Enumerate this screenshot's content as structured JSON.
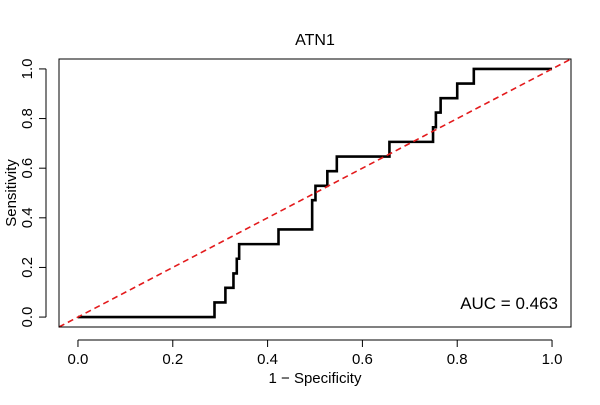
{
  "chart_data": {
    "type": "line",
    "title": "ATN1",
    "xlabel": "1 − Specificity",
    "ylabel": "Sensitivity",
    "xlim": [
      -0.04,
      1.04
    ],
    "ylim": [
      -0.04,
      1.04
    ],
    "x_ticks": [
      0.0,
      0.2,
      0.4,
      0.6,
      0.8,
      1.0
    ],
    "x_tick_labels": [
      "0.0",
      "0.2",
      "0.4",
      "0.6",
      "0.8",
      "1.0"
    ],
    "y_ticks": [
      0.0,
      0.2,
      0.4,
      0.6,
      0.8,
      1.0
    ],
    "y_tick_labels": [
      "0.0",
      "0.2",
      "0.4",
      "0.6",
      "0.8",
      "1.0"
    ],
    "grid": false,
    "series": [
      {
        "name": "ROC",
        "color": "#000000",
        "style": "solid",
        "x": [
          0.0,
          0.288,
          0.288,
          0.311,
          0.311,
          0.328,
          0.328,
          0.335,
          0.335,
          0.34,
          0.34,
          0.423,
          0.423,
          0.494,
          0.494,
          0.501,
          0.501,
          0.526,
          0.526,
          0.546,
          0.546,
          0.657,
          0.657,
          0.749,
          0.749,
          0.755,
          0.755,
          0.765,
          0.765,
          0.8,
          0.8,
          0.835,
          0.835,
          1.0
        ],
        "y": [
          0.0,
          0.0,
          0.059,
          0.059,
          0.118,
          0.118,
          0.176,
          0.176,
          0.235,
          0.235,
          0.294,
          0.294,
          0.353,
          0.353,
          0.471,
          0.471,
          0.529,
          0.529,
          0.588,
          0.588,
          0.647,
          0.647,
          0.706,
          0.706,
          0.765,
          0.765,
          0.824,
          0.824,
          0.882,
          0.882,
          0.941,
          0.941,
          1.0,
          1.0
        ]
      },
      {
        "name": "reference",
        "color": "#e31a1c",
        "style": "dashed",
        "x": [
          -0.04,
          1.04
        ],
        "y": [
          -0.04,
          1.04
        ]
      }
    ],
    "annotation": "AUC = 0.463",
    "annotation_position": "bottom-right"
  }
}
